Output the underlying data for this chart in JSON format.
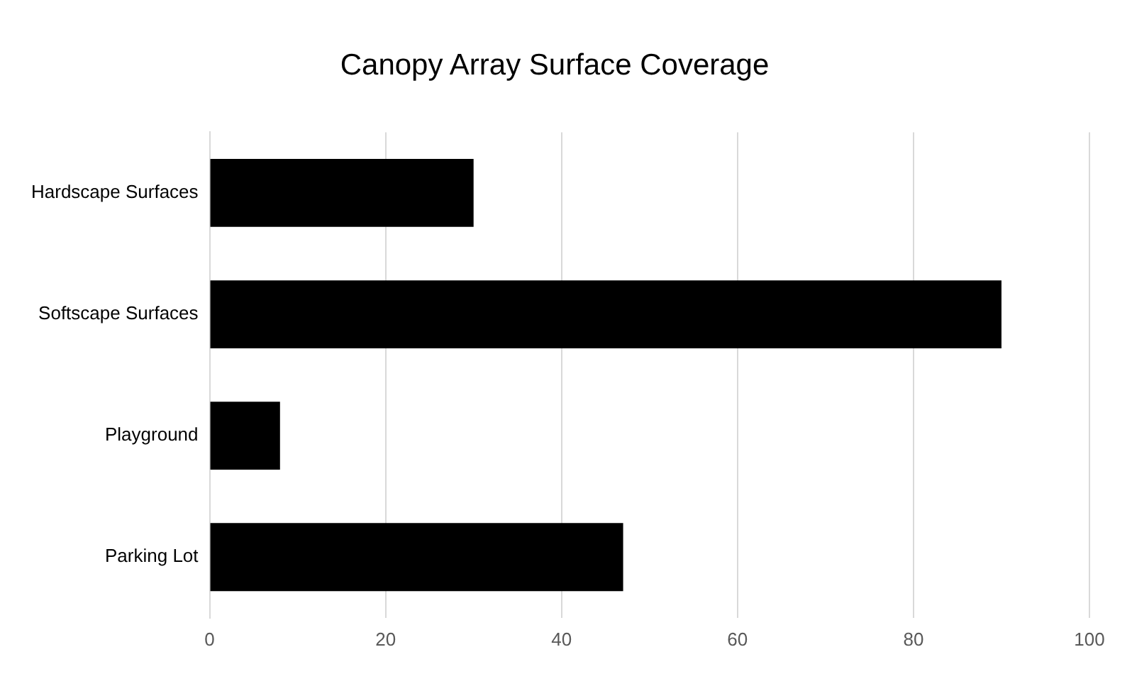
{
  "chart_data": {
    "type": "bar",
    "title": "Canopy Array Surface Coverage",
    "orientation": "horizontal",
    "categories": [
      "Hardscape Surfaces",
      "Softscape Surfaces",
      "Playground",
      "Parking Lot"
    ],
    "values": [
      30,
      90,
      8,
      47
    ],
    "color": "#000000",
    "xlim": [
      0,
      100
    ],
    "xticks": [
      0,
      20,
      40,
      60,
      80,
      100
    ],
    "grid": "x",
    "legend": false
  }
}
